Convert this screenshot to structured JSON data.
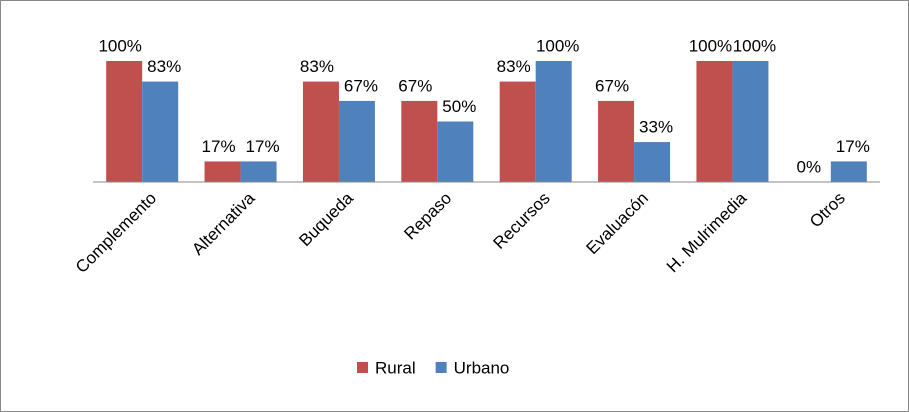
{
  "chart_data": {
    "type": "bar",
    "categories": [
      "Complemento",
      "Alternativa",
      "Buqueda",
      "Repaso",
      "Recursos",
      "Evaluacón",
      "H. Mulrimedia",
      "Otros"
    ],
    "series": [
      {
        "name": "Rural",
        "color": "#c0504d",
        "values": [
          100,
          17,
          83,
          67,
          83,
          67,
          100,
          0
        ],
        "value_labels": [
          "100%",
          "17%",
          "83%",
          "67%",
          "83%",
          "67%",
          "100%",
          "0%"
        ]
      },
      {
        "name": "Urbano",
        "color": "#4f81bd",
        "values": [
          83,
          17,
          67,
          50,
          100,
          33,
          100,
          17
        ],
        "value_labels": [
          "83%",
          "17%",
          "67%",
          "50%",
          "100%",
          "33%",
          "100%",
          "17%"
        ]
      }
    ],
    "legend": "bottom"
  }
}
